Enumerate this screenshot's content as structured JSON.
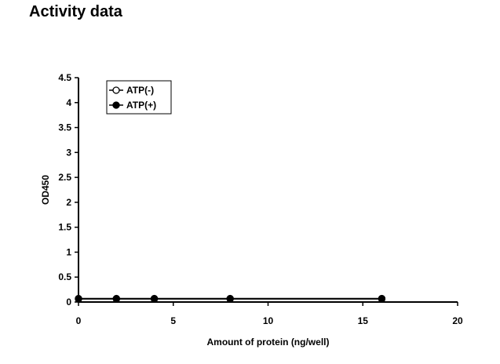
{
  "page": {
    "title": "Activity data"
  },
  "chart_data": {
    "type": "scatter",
    "title": "",
    "xlabel": "Amount of protein (ng/well)",
    "ylabel": "OD450",
    "xlim": [
      0,
      20
    ],
    "ylim": [
      0,
      4.5
    ],
    "x_ticks": [
      0,
      5,
      10,
      15,
      20
    ],
    "y_ticks": [
      0,
      0.5,
      1,
      1.5,
      2,
      2.5,
      3,
      3.5,
      4,
      4.5
    ],
    "grid": false,
    "legend_position": "top-left",
    "series": [
      {
        "name": "ATP(-)",
        "marker": "open-circle",
        "color": "#000000",
        "x": [
          0,
          2,
          4,
          8,
          16
        ],
        "y": [
          0.06,
          0.06,
          0.06,
          0.06,
          0.06
        ]
      },
      {
        "name": "ATP(+)",
        "marker": "filled-circle",
        "color": "#000000",
        "x": [
          0,
          2,
          4,
          8,
          16
        ],
        "y": [
          0.07,
          0.07,
          0.07,
          0.07,
          0.07
        ]
      }
    ]
  }
}
